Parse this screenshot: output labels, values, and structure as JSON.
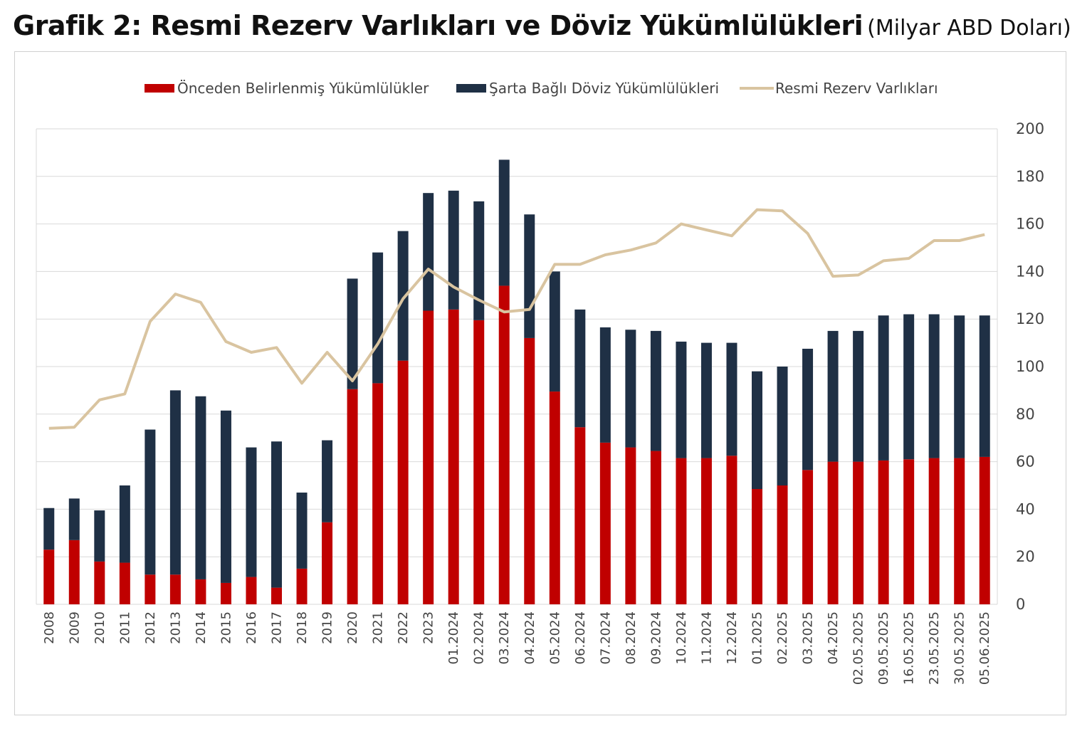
{
  "title": "Grafik 2: Resmi Rezerv Varlıkları ve Döviz Yükümlülükleri",
  "title_unit": "(Milyar ABD Doları)",
  "colors": {
    "red": "#c00000",
    "navy": "#1f3045",
    "line": "#d9c4a0",
    "grid": "#d9d9d9"
  },
  "chart_data": {
    "type": "bar",
    "stacked": true,
    "categories": [
      "2008",
      "2009",
      "2010",
      "2011",
      "2012",
      "2013",
      "2014",
      "2015",
      "2016",
      "2017",
      "2018",
      "2019",
      "2020",
      "2021",
      "2022",
      "2023",
      "01.2024",
      "02.2024",
      "03.2024",
      "04.2024",
      "05.2024",
      "06.2024",
      "07.2024",
      "08.2024",
      "09.2024",
      "10.2024",
      "11.2024",
      "12.2024",
      "01.2025",
      "02.2025",
      "03.2025",
      "04.2025",
      "02.05.2025",
      "09.05.2025",
      "16.05.2025",
      "23.05.2025",
      "30.05.2025",
      "05.06.2025"
    ],
    "series": [
      {
        "name": "Önceden Belirlenmiş Yükümlülükler",
        "type": "bar",
        "color": "#c00000",
        "values": [
          23,
          27,
          18,
          17.5,
          12.5,
          12.5,
          10.5,
          9,
          11.5,
          7,
          15,
          34.5,
          90.5,
          93,
          102.5,
          123.5,
          124,
          119.5,
          134,
          112,
          89.5,
          74.5,
          68,
          66,
          64.5,
          61.5,
          61.5,
          62.5,
          48.5,
          50,
          56.5,
          60,
          60,
          60.5,
          61,
          61.5,
          61.5,
          62
        ]
      },
      {
        "name": "Şarta Bağlı Döviz Yükümlülükleri",
        "type": "bar",
        "color": "#1f3045",
        "values": [
          17.5,
          17.5,
          21.5,
          32.5,
          61,
          77.5,
          77,
          72.5,
          54.5,
          61.5,
          32,
          34.5,
          46.5,
          55,
          54.5,
          49.5,
          50,
          50,
          53,
          52,
          50.5,
          49.5,
          48.5,
          49.5,
          50.5,
          49,
          48.5,
          47.5,
          49.5,
          50,
          51,
          55,
          55,
          61,
          61,
          60.5,
          60,
          59.5
        ]
      },
      {
        "name": "Resmi Rezerv Varlıkları",
        "type": "line",
        "color": "#d9c4a0",
        "values": [
          74,
          74.5,
          86,
          88.5,
          119,
          130.5,
          127,
          110.5,
          106,
          108,
          93,
          106,
          94,
          109.5,
          128.5,
          141,
          133.5,
          128,
          123,
          124,
          143,
          143,
          147,
          149,
          152,
          160,
          157.5,
          155,
          166,
          165.5,
          156,
          138,
          138.5,
          144.5,
          145.5,
          153,
          153,
          155.5
        ]
      }
    ],
    "y_axis": {
      "position": "right",
      "min": 0,
      "max": 200,
      "step": 20,
      "ticks": [
        "0",
        "20",
        "40",
        "60",
        "80",
        "100",
        "120",
        "140",
        "160",
        "180",
        "200"
      ]
    },
    "xlabel": "",
    "ylabel": "",
    "grid": true,
    "legend_position": "top"
  }
}
